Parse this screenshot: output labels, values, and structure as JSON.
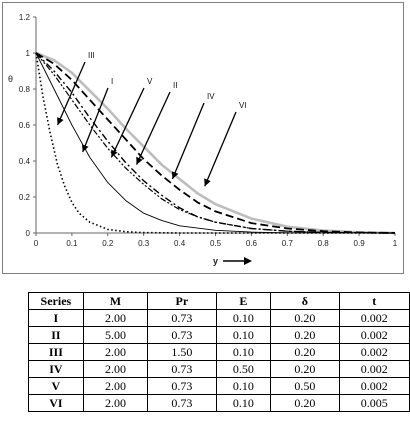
{
  "chart_data": {
    "type": "line",
    "ylabel": "θ",
    "xlabel": "y",
    "xlim": [
      0,
      1
    ],
    "ylim": [
      0,
      1.2
    ],
    "x_ticks": [
      "0",
      "0.1",
      "0.2",
      "0.3",
      "0.4",
      "0.5",
      "0.6",
      "0.7",
      "0.8",
      "0.9",
      "1"
    ],
    "y_ticks": [
      "0",
      "0.2",
      "0.4",
      "0.6",
      "0.8",
      "1",
      "1.2"
    ],
    "grid": false,
    "series": [
      {
        "name": "I",
        "style": "solid-thin",
        "color": "#000000",
        "points": [
          [
            0,
            1
          ],
          [
            0.05,
            0.8
          ],
          [
            0.1,
            0.6
          ],
          [
            0.15,
            0.42
          ],
          [
            0.2,
            0.28
          ],
          [
            0.25,
            0.18
          ],
          [
            0.3,
            0.11
          ],
          [
            0.35,
            0.07
          ],
          [
            0.4,
            0.04
          ],
          [
            0.5,
            0.015
          ],
          [
            0.6,
            0.005
          ],
          [
            0.7,
            0.001
          ],
          [
            1,
            0
          ]
        ]
      },
      {
        "name": "II",
        "style": "dash-dot",
        "color": "#000000",
        "points": [
          [
            0,
            1
          ],
          [
            0.05,
            0.9
          ],
          [
            0.1,
            0.78
          ],
          [
            0.15,
            0.64
          ],
          [
            0.2,
            0.51
          ],
          [
            0.25,
            0.39
          ],
          [
            0.3,
            0.29
          ],
          [
            0.35,
            0.21
          ],
          [
            0.4,
            0.14
          ],
          [
            0.45,
            0.09
          ],
          [
            0.5,
            0.06
          ],
          [
            0.6,
            0.025
          ],
          [
            0.7,
            0.01
          ],
          [
            0.8,
            0.003
          ],
          [
            0.9,
            0.001
          ],
          [
            1,
            0
          ]
        ]
      },
      {
        "name": "III",
        "style": "dotted",
        "color": "#000000",
        "points": [
          [
            0,
            1
          ],
          [
            0.02,
            0.75
          ],
          [
            0.04,
            0.55
          ],
          [
            0.06,
            0.38
          ],
          [
            0.08,
            0.26
          ],
          [
            0.1,
            0.17
          ],
          [
            0.12,
            0.11
          ],
          [
            0.15,
            0.06
          ],
          [
            0.2,
            0.02
          ],
          [
            0.25,
            0.007
          ],
          [
            0.3,
            0.002
          ],
          [
            0.4,
            0
          ],
          [
            1,
            0
          ]
        ]
      },
      {
        "name": "IV",
        "style": "dashed-heavy",
        "color": "#000000",
        "points": [
          [
            0,
            1
          ],
          [
            0.05,
            0.94
          ],
          [
            0.1,
            0.85
          ],
          [
            0.15,
            0.74
          ],
          [
            0.2,
            0.63
          ],
          [
            0.25,
            0.52
          ],
          [
            0.3,
            0.41
          ],
          [
            0.35,
            0.32
          ],
          [
            0.4,
            0.24
          ],
          [
            0.45,
            0.17
          ],
          [
            0.5,
            0.12
          ],
          [
            0.6,
            0.055
          ],
          [
            0.7,
            0.025
          ],
          [
            0.8,
            0.01
          ],
          [
            0.9,
            0.003
          ],
          [
            1,
            0
          ]
        ]
      },
      {
        "name": "V",
        "style": "dash-dot-dot",
        "color": "#000000",
        "points": [
          [
            0,
            1
          ],
          [
            0.05,
            0.88
          ],
          [
            0.1,
            0.74
          ],
          [
            0.15,
            0.6
          ],
          [
            0.2,
            0.47
          ],
          [
            0.25,
            0.36
          ],
          [
            0.3,
            0.27
          ],
          [
            0.35,
            0.19
          ],
          [
            0.4,
            0.13
          ],
          [
            0.45,
            0.09
          ],
          [
            0.5,
            0.06
          ],
          [
            0.6,
            0.025
          ],
          [
            0.7,
            0.01
          ],
          [
            0.8,
            0.004
          ],
          [
            1,
            0
          ]
        ]
      },
      {
        "name": "VI",
        "style": "gray-thick",
        "color": "#bdbdbd",
        "points": [
          [
            0,
            1
          ],
          [
            0.05,
            0.96
          ],
          [
            0.1,
            0.89
          ],
          [
            0.15,
            0.79
          ],
          [
            0.2,
            0.69
          ],
          [
            0.25,
            0.58
          ],
          [
            0.3,
            0.48
          ],
          [
            0.35,
            0.38
          ],
          [
            0.4,
            0.3
          ],
          [
            0.45,
            0.22
          ],
          [
            0.5,
            0.16
          ],
          [
            0.6,
            0.08
          ],
          [
            0.7,
            0.035
          ],
          [
            0.8,
            0.014
          ],
          [
            0.9,
            0.004
          ],
          [
            1,
            0
          ]
        ]
      }
    ],
    "annotations": [
      {
        "label": "III",
        "tip": [
          0.06,
          0.6
        ]
      },
      {
        "label": "I",
        "tip": [
          0.13,
          0.45
        ]
      },
      {
        "label": "V",
        "tip": [
          0.21,
          0.42
        ]
      },
      {
        "label": "II",
        "tip": [
          0.28,
          0.38
        ]
      },
      {
        "label": "IV",
        "tip": [
          0.38,
          0.3
        ]
      },
      {
        "label": "VI",
        "tip": [
          0.47,
          0.26
        ]
      }
    ]
  },
  "table": {
    "headers": [
      "Series",
      "M",
      "Pr",
      "E",
      "δ",
      "t"
    ],
    "rows": [
      [
        "I",
        "2.00",
        "0.73",
        "0.10",
        "0.20",
        "0.002"
      ],
      [
        "II",
        "5.00",
        "0.73",
        "0.10",
        "0.20",
        "0.002"
      ],
      [
        "III",
        "2.00",
        "1.50",
        "0.10",
        "0.20",
        "0.002"
      ],
      [
        "IV",
        "2.00",
        "0.73",
        "0.50",
        "0.20",
        "0.002"
      ],
      [
        "V",
        "2.00",
        "0.73",
        "0.10",
        "0.50",
        "0.002"
      ],
      [
        "VI",
        "2.00",
        "0.73",
        "0.10",
        "0.20",
        "0.005"
      ]
    ]
  }
}
